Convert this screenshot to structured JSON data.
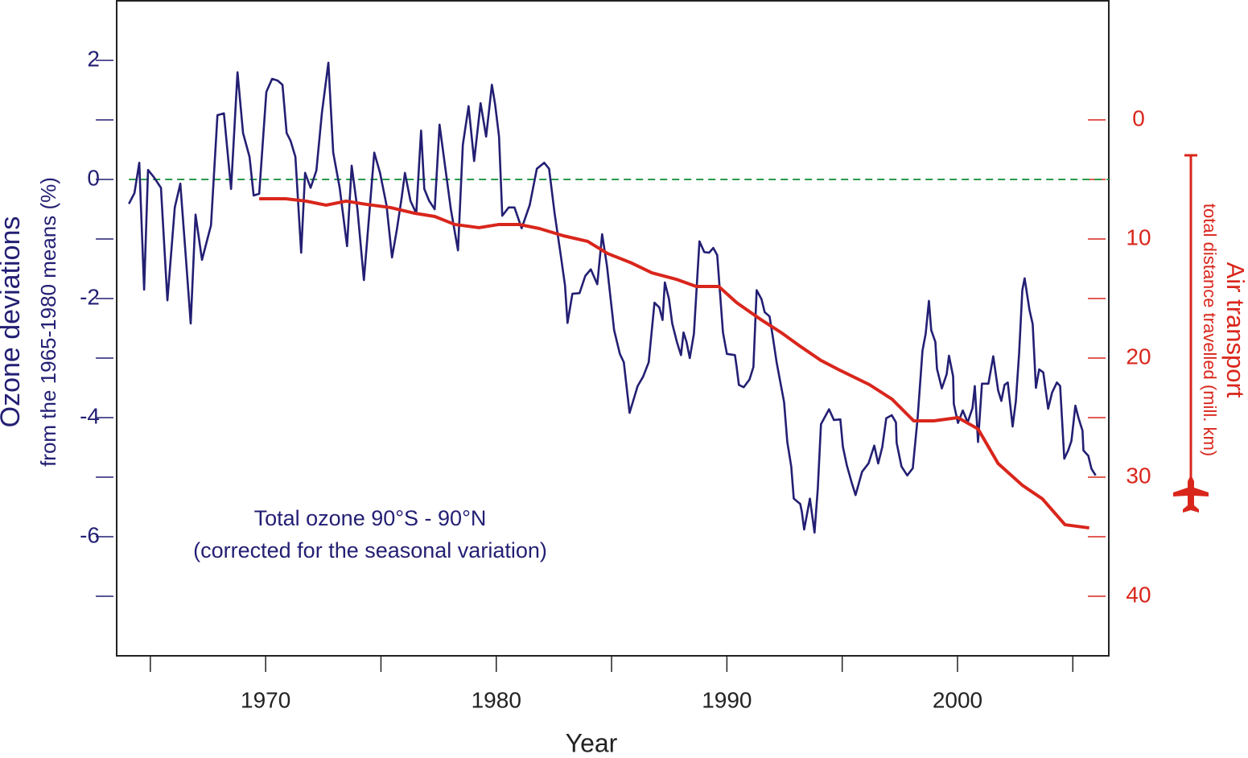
{
  "chart_data": {
    "type": "line",
    "xlabel": "Year",
    "ylabel": "Ozone deviations",
    "ylabel_sub": "from the 1965-1980 means (%)",
    "y2label": "Air transport",
    "y2label_sub": "total distance travelled (mill. km)",
    "annotations": [
      "Total ozone 90°S - 90°N",
      "(corrected for the seasonal variation)"
    ],
    "xlim": [
      1963.54,
      2006.56
    ],
    "xticks": [
      1970,
      1980,
      1990,
      2000
    ],
    "xminor_ticks": [
      1965,
      1975,
      1985,
      1995,
      2005
    ],
    "ylim": [
      -8,
      3
    ],
    "yticks": [
      2,
      0,
      -2,
      -4,
      -6
    ],
    "yminor_ticks": [
      1,
      -1,
      -3,
      -5,
      -7
    ],
    "y2lim": [
      -10,
      45
    ],
    "y2_inverted": true,
    "y2ticks": [
      0,
      10,
      20,
      30,
      40
    ],
    "y2minor_ticks": [
      5,
      15,
      25,
      35
    ],
    "left_color": "#231f73",
    "right_color": "#d9261c",
    "hline": {
      "value": 0,
      "color": "#2a9a4a"
    },
    "series": [
      {
        "color": "#231f73",
        "x": [
          1964.07,
          1964.31,
          1964.52,
          1964.73,
          1964.9,
          1965.15,
          1965.46,
          1965.74,
          1966.06,
          1966.3,
          1966.54,
          1966.75,
          1966.96,
          1967.24,
          1967.63,
          1967.91,
          1968.19,
          1968.5,
          1968.78,
          1969.02,
          1969.3,
          1969.48,
          1969.72,
          1970.03,
          1970.28,
          1970.52,
          1970.73,
          1970.91,
          1971.08,
          1971.29,
          1971.54,
          1971.71,
          1971.95,
          1972.2,
          1972.44,
          1972.72,
          1972.93,
          1973.21,
          1973.53,
          1973.73,
          1973.98,
          1974.26,
          1974.71,
          1974.96,
          1975.24,
          1975.48,
          1975.69,
          1975.9,
          1976.04,
          1976.28,
          1976.53,
          1976.74,
          1976.88,
          1977.09,
          1977.33,
          1977.54,
          1977.75,
          1978.03,
          1978.34,
          1978.55,
          1978.8,
          1979.04,
          1979.32,
          1979.56,
          1979.81,
          1979.95,
          1980.12,
          1980.26,
          1980.54,
          1980.79,
          1981.1,
          1981.45,
          1981.76,
          1982.08,
          1982.29,
          1982.53,
          1982.81,
          1982.98,
          1983.09,
          1983.3,
          1983.61,
          1983.86,
          1984.1,
          1984.38,
          1984.59,
          1984.8,
          1985.11,
          1985.36,
          1985.53,
          1985.78,
          1986.13,
          1986.37,
          1986.61,
          1986.86,
          1987.07,
          1987.21,
          1987.31,
          1987.49,
          1987.63,
          1987.84,
          1988.01,
          1988.12,
          1988.25,
          1988.39,
          1988.57,
          1988.81,
          1989.02,
          1989.23,
          1989.41,
          1989.58,
          1989.83,
          1990.0,
          1990.35,
          1990.42,
          1990.52,
          1990.73,
          1990.98,
          1991.15,
          1991.29,
          1991.5,
          1991.64,
          1991.85,
          1991.99,
          1992.16,
          1992.48,
          1992.62,
          1992.79,
          1992.9,
          1993.18,
          1993.25,
          1993.35,
          1993.6,
          1993.8,
          1993.94,
          1994.08,
          1994.43,
          1994.64,
          1994.92,
          1995.03,
          1995.2,
          1995.41,
          1995.58,
          1995.86,
          1996.14,
          1996.39,
          1996.56,
          1996.74,
          1996.91,
          1997.15,
          1997.33,
          1997.36,
          1997.57,
          1997.82,
          1998.06,
          1998.27,
          1998.48,
          1998.62,
          1998.76,
          1998.86,
          1999.04,
          1999.11,
          1999.32,
          1999.53,
          1999.63,
          1999.81,
          1999.84,
          2000.02,
          2000.23,
          2000.44,
          2000.65,
          2000.75,
          2000.89,
          2001.06,
          2001.34,
          2001.55,
          2001.76,
          2001.9,
          2002.04,
          2002.18,
          2002.39,
          2002.53,
          2002.67,
          2002.81,
          2002.91,
          2003.12,
          2003.26,
          2003.4,
          2003.54,
          2003.72,
          2003.93,
          2004.1,
          2004.31,
          2004.45,
          2004.63,
          2004.8,
          2004.94,
          2005.11,
          2005.25,
          2005.42,
          2005.46,
          2005.67,
          2005.81,
          2005.99
        ],
        "values": [
          -0.41,
          -0.23,
          0.28,
          -1.85,
          0.16,
          0.04,
          -0.14,
          -2.03,
          -0.47,
          -0.07,
          -1.31,
          -2.42,
          -0.59,
          -1.35,
          -0.77,
          1.08,
          1.11,
          -0.16,
          1.8,
          0.78,
          0.38,
          -0.27,
          -0.24,
          1.47,
          1.69,
          1.66,
          1.59,
          0.78,
          0.65,
          0.38,
          -1.23,
          0.11,
          -0.14,
          0.15,
          1.12,
          1.96,
          0.45,
          -0.14,
          -1.12,
          0.23,
          -0.5,
          -1.69,
          0.45,
          0.11,
          -0.43,
          -1.31,
          -0.84,
          -0.3,
          0.11,
          -0.36,
          -0.57,
          0.82,
          -0.16,
          -0.36,
          -0.5,
          0.92,
          0.31,
          -0.5,
          -1.19,
          0.58,
          1.23,
          0.31,
          1.28,
          0.72,
          1.59,
          1.26,
          0.72,
          -0.61,
          -0.47,
          -0.47,
          -0.82,
          -0.43,
          0.18,
          0.28,
          0.18,
          -0.57,
          -1.31,
          -1.78,
          -2.41,
          -1.92,
          -1.91,
          -1.62,
          -1.51,
          -1.76,
          -0.92,
          -1.45,
          -2.53,
          -2.93,
          -3.07,
          -3.92,
          -3.47,
          -3.31,
          -3.07,
          -2.07,
          -2.15,
          -2.36,
          -1.73,
          -2.01,
          -2.42,
          -2.74,
          -2.95,
          -2.57,
          -2.73,
          -3.0,
          -2.59,
          -1.04,
          -1.22,
          -1.23,
          -1.15,
          -1.27,
          -2.57,
          -2.93,
          -2.95,
          -3.14,
          -3.45,
          -3.49,
          -3.36,
          -3.15,
          -1.86,
          -2.01,
          -2.23,
          -2.3,
          -2.64,
          -3.08,
          -3.74,
          -4.41,
          -4.82,
          -5.36,
          -5.45,
          -5.58,
          -5.88,
          -5.36,
          -5.93,
          -5.2,
          -4.11,
          -3.86,
          -4.04,
          -4.03,
          -4.49,
          -4.8,
          -5.09,
          -5.3,
          -4.91,
          -4.77,
          -4.47,
          -4.77,
          -4.49,
          -4.01,
          -3.96,
          -4.08,
          -4.42,
          -4.82,
          -4.97,
          -4.85,
          -4.01,
          -2.88,
          -2.59,
          -2.04,
          -2.53,
          -2.73,
          -3.18,
          -3.51,
          -3.27,
          -2.96,
          -3.31,
          -3.77,
          -4.09,
          -3.88,
          -4.08,
          -3.84,
          -3.47,
          -4.41,
          -3.43,
          -3.43,
          -2.97,
          -3.54,
          -3.72,
          -3.45,
          -3.41,
          -4.15,
          -3.72,
          -2.93,
          -1.86,
          -1.66,
          -2.19,
          -2.43,
          -3.5,
          -3.19,
          -3.24,
          -3.85,
          -3.58,
          -3.41,
          -3.47,
          -4.69,
          -4.55,
          -4.39,
          -3.8,
          -4.01,
          -4.22,
          -4.55,
          -4.64,
          -4.86,
          -4.97
        ]
      },
      {
        "color": "#d9261c",
        "axis": "y2",
        "x": [
          1969.72,
          1970.87,
          1971.75,
          1972.62,
          1973.49,
          1974.36,
          1975.41,
          1976.46,
          1977.33,
          1978.2,
          1979.25,
          1980.12,
          1980.99,
          1981.87,
          1982.91,
          1983.96,
          1984.83,
          1985.88,
          1986.75,
          1987.8,
          1988.67,
          1989.65,
          1990.42,
          1991.47,
          1992.34,
          1993.21,
          1994.08,
          1994.96,
          1996.18,
          1997.16,
          1998.1,
          1998.97,
          2000.02,
          2000.89,
          2001.76,
          2002.81,
          2003.68,
          2004.66,
          2005.71
        ],
        "values": [
          6.62,
          6.62,
          6.82,
          7.16,
          6.82,
          7.09,
          7.36,
          7.84,
          8.11,
          8.78,
          9.05,
          8.78,
          8.78,
          9.12,
          9.73,
          10.2,
          11.22,
          12.03,
          12.84,
          13.38,
          13.99,
          13.99,
          15.34,
          16.76,
          17.84,
          19.05,
          20.2,
          21.08,
          22.23,
          23.45,
          25.27,
          25.27,
          25.0,
          25.95,
          28.85,
          30.68,
          31.82,
          33.99,
          34.26
        ]
      }
    ]
  }
}
